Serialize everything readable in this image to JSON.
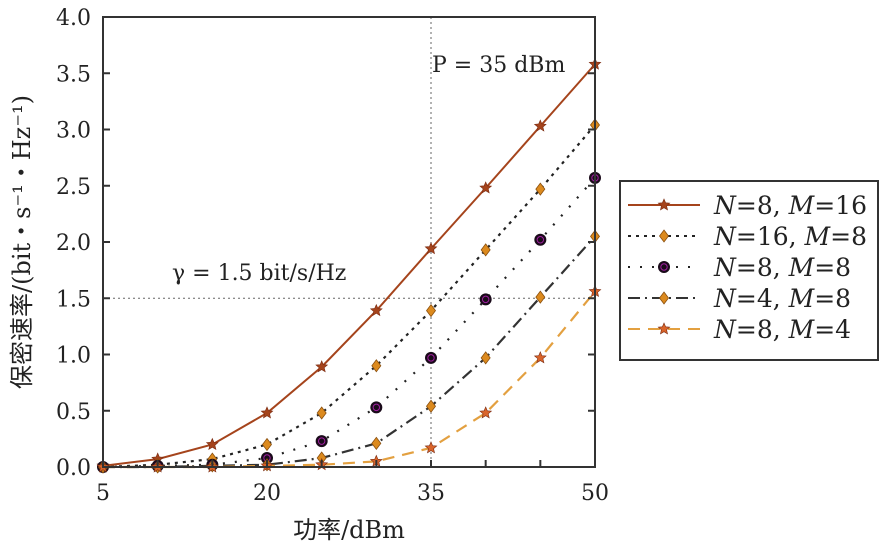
{
  "chart_data": {
    "type": "line",
    "xlabel": "功率/dBm",
    "ylabel": "保密速率/(bit・s⁻¹・Hz⁻¹)",
    "xlim": [
      5,
      50
    ],
    "ylim": [
      0,
      4
    ],
    "xticks": [
      "5",
      "20",
      "35",
      "50"
    ],
    "yticks": [
      "0.0",
      "0.5",
      "1.0",
      "1.5",
      "2.0",
      "2.5",
      "3.0",
      "3.5",
      "4.0"
    ],
    "x": [
      5,
      10,
      15,
      20,
      25,
      30,
      35,
      40,
      45,
      50
    ],
    "series": [
      {
        "name": "N=8, M=16",
        "color": "#a5441c",
        "marker": "star",
        "dash": "solid",
        "marker_color": "#a5441c",
        "values": [
          0.01,
          0.07,
          0.2,
          0.48,
          0.89,
          1.39,
          1.94,
          2.48,
          3.03,
          3.58
        ]
      },
      {
        "name": "N=16, M=8",
        "color": "#222222",
        "marker": "diamond",
        "dash": "dotted",
        "marker_color": "#dc8a1e",
        "values": [
          0.0,
          0.02,
          0.07,
          0.2,
          0.48,
          0.9,
          1.39,
          1.93,
          2.47,
          3.04
        ]
      },
      {
        "name": "N=8, M=8",
        "color": "#222222",
        "marker": "circle",
        "dash": "sparse-dot",
        "marker_color": "#1a0a1a",
        "values": [
          0.0,
          0.01,
          0.02,
          0.08,
          0.23,
          0.53,
          0.97,
          1.49,
          2.02,
          2.57
        ]
      },
      {
        "name": "N=4, M=8",
        "color": "#333333",
        "marker": "diamond",
        "dash": "dash-dot",
        "marker_color": "#dc8a1e",
        "values": [
          0.0,
          0.0,
          0.01,
          0.02,
          0.08,
          0.21,
          0.54,
          0.97,
          1.51,
          2.05
        ]
      },
      {
        "name": "N=8, M=4",
        "color": "#e3a040",
        "marker": "star",
        "dash": "dashed",
        "marker_color": "#d9642a",
        "values": [
          0.0,
          0.0,
          0.0,
          0.01,
          0.02,
          0.05,
          0.17,
          0.48,
          0.97,
          1.56
        ]
      }
    ],
    "reference_lines": {
      "x": 35,
      "y": 1.5
    },
    "annotations": [
      "P = 35 dBm",
      "γ = 1.5 bit/s/Hz"
    ],
    "legend_position": "right",
    "grid": false
  }
}
